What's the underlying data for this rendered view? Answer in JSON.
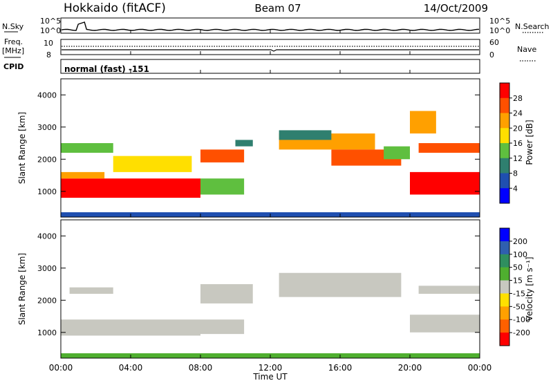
{
  "header": {
    "station": "Hokkaido (fitACF)",
    "beam": "Beam 07",
    "date": "14/Oct/2009"
  },
  "strip_panels": {
    "nsky_label": "N.Sky",
    "nsky_ticks": [
      "10^5",
      "10^0"
    ],
    "nsearch_label": "N.Search",
    "nsearch_ticks": [
      "10^5",
      "10^0"
    ],
    "freq_label_1": "Freq.",
    "freq_label_2": "[MHz]",
    "freq_ticks": [
      "10",
      "8"
    ],
    "nave_label": "Nave",
    "nave_ticks": [
      "60",
      "0"
    ],
    "cpid_label": "CPID",
    "cpid_value": "normal (fast) -151"
  },
  "axes": {
    "ylabel": "Slant Range [km]",
    "yticks": [
      "4000",
      "3000",
      "2000",
      "1000"
    ],
    "xlabel": "Time UT",
    "xticks": [
      "00:00",
      "04:00",
      "08:00",
      "12:00",
      "16:00",
      "20:00",
      "00:00"
    ]
  },
  "power_colorbar": {
    "label": "Power [dB]",
    "ticks": [
      "28",
      "24",
      "20",
      "16",
      "12",
      "8",
      "4"
    ],
    "colors": [
      "#0000ff",
      "#1f4fb0",
      "#2f7f6f",
      "#5fbf3f",
      "#ffdf00",
      "#ffa000",
      "#ff5000",
      "#ff0000"
    ]
  },
  "velocity_colorbar": {
    "label": "Velocity [m s⁻¹]",
    "ticks": [
      "200",
      "100",
      "50",
      "15",
      "-15",
      "-50",
      "-100",
      "-200"
    ],
    "colors": [
      "#ff0000",
      "#ff6000",
      "#ffa000",
      "#ffe000",
      "#c8c8c0",
      "#4faf2f",
      "#2f8f5f",
      "#2f5faf",
      "#0000ff"
    ]
  },
  "chart_data": {
    "type": "heatmap",
    "x_unit": "hours UT",
    "y_unit": "km",
    "xlim": [
      0,
      24
    ],
    "ylim": [
      200,
      4500
    ],
    "power_clim": [
      0,
      32
    ],
    "velocity_clim": [
      -250,
      250
    ],
    "power_regions": [
      {
        "t0": 0.0,
        "t1": 8.0,
        "r0": 800,
        "r1": 1400,
        "value": 30
      },
      {
        "t0": 0.0,
        "t1": 2.5,
        "r0": 1400,
        "r1": 1600,
        "value": 22
      },
      {
        "t0": 0.0,
        "t1": 3.0,
        "r0": 2200,
        "r1": 2500,
        "value": 14
      },
      {
        "t0": 3.0,
        "t1": 7.5,
        "r0": 1600,
        "r1": 2100,
        "value": 18
      },
      {
        "t0": 8.0,
        "t1": 10.5,
        "r0": 900,
        "r1": 1400,
        "value": 14
      },
      {
        "t0": 8.0,
        "t1": 10.5,
        "r0": 1900,
        "r1": 2300,
        "value": 26
      },
      {
        "t0": 10.0,
        "t1": 11.0,
        "r0": 2400,
        "r1": 2600,
        "value": 10
      },
      {
        "t0": 12.5,
        "t1": 18.0,
        "r0": 2300,
        "r1": 2800,
        "value": 20
      },
      {
        "t0": 12.5,
        "t1": 15.5,
        "r0": 2600,
        "r1": 2900,
        "value": 8
      },
      {
        "t0": 15.5,
        "t1": 19.5,
        "r0": 1800,
        "r1": 2300,
        "value": 26
      },
      {
        "t0": 18.5,
        "t1": 20.0,
        "r0": 2000,
        "r1": 2400,
        "value": 12
      },
      {
        "t0": 20.0,
        "t1": 24.0,
        "r0": 900,
        "r1": 1600,
        "value": 29
      },
      {
        "t0": 20.5,
        "t1": 24.0,
        "r0": 2200,
        "r1": 2500,
        "value": 26
      },
      {
        "t0": 20.0,
        "t1": 21.5,
        "r0": 2800,
        "r1": 3500,
        "value": 20
      },
      {
        "t0": 0.0,
        "t1": 24.0,
        "r0": 200,
        "r1": 350,
        "value": 6
      }
    ],
    "velocity_regions": [
      {
        "t0": 0.0,
        "t1": 8.0,
        "r0": 900,
        "r1": 1400,
        "value": 0
      },
      {
        "t0": 0.5,
        "t1": 3.0,
        "r0": 2200,
        "r1": 2400,
        "value": 0
      },
      {
        "t0": 8.0,
        "t1": 10.5,
        "r0": 950,
        "r1": 1400,
        "value": 0
      },
      {
        "t0": 8.0,
        "t1": 11.0,
        "r0": 1900,
        "r1": 2500,
        "value": 0
      },
      {
        "t0": 12.5,
        "t1": 19.5,
        "r0": 2100,
        "r1": 2850,
        "value": 0
      },
      {
        "t0": 20.0,
        "t1": 24.0,
        "r0": 1000,
        "r1": 1550,
        "value": 0
      },
      {
        "t0": 20.5,
        "t1": 24.0,
        "r0": 2200,
        "r1": 2450,
        "value": 0
      },
      {
        "t0": 0.0,
        "t1": 24.0,
        "r0": 200,
        "r1": 350,
        "value": 80
      }
    ]
  }
}
